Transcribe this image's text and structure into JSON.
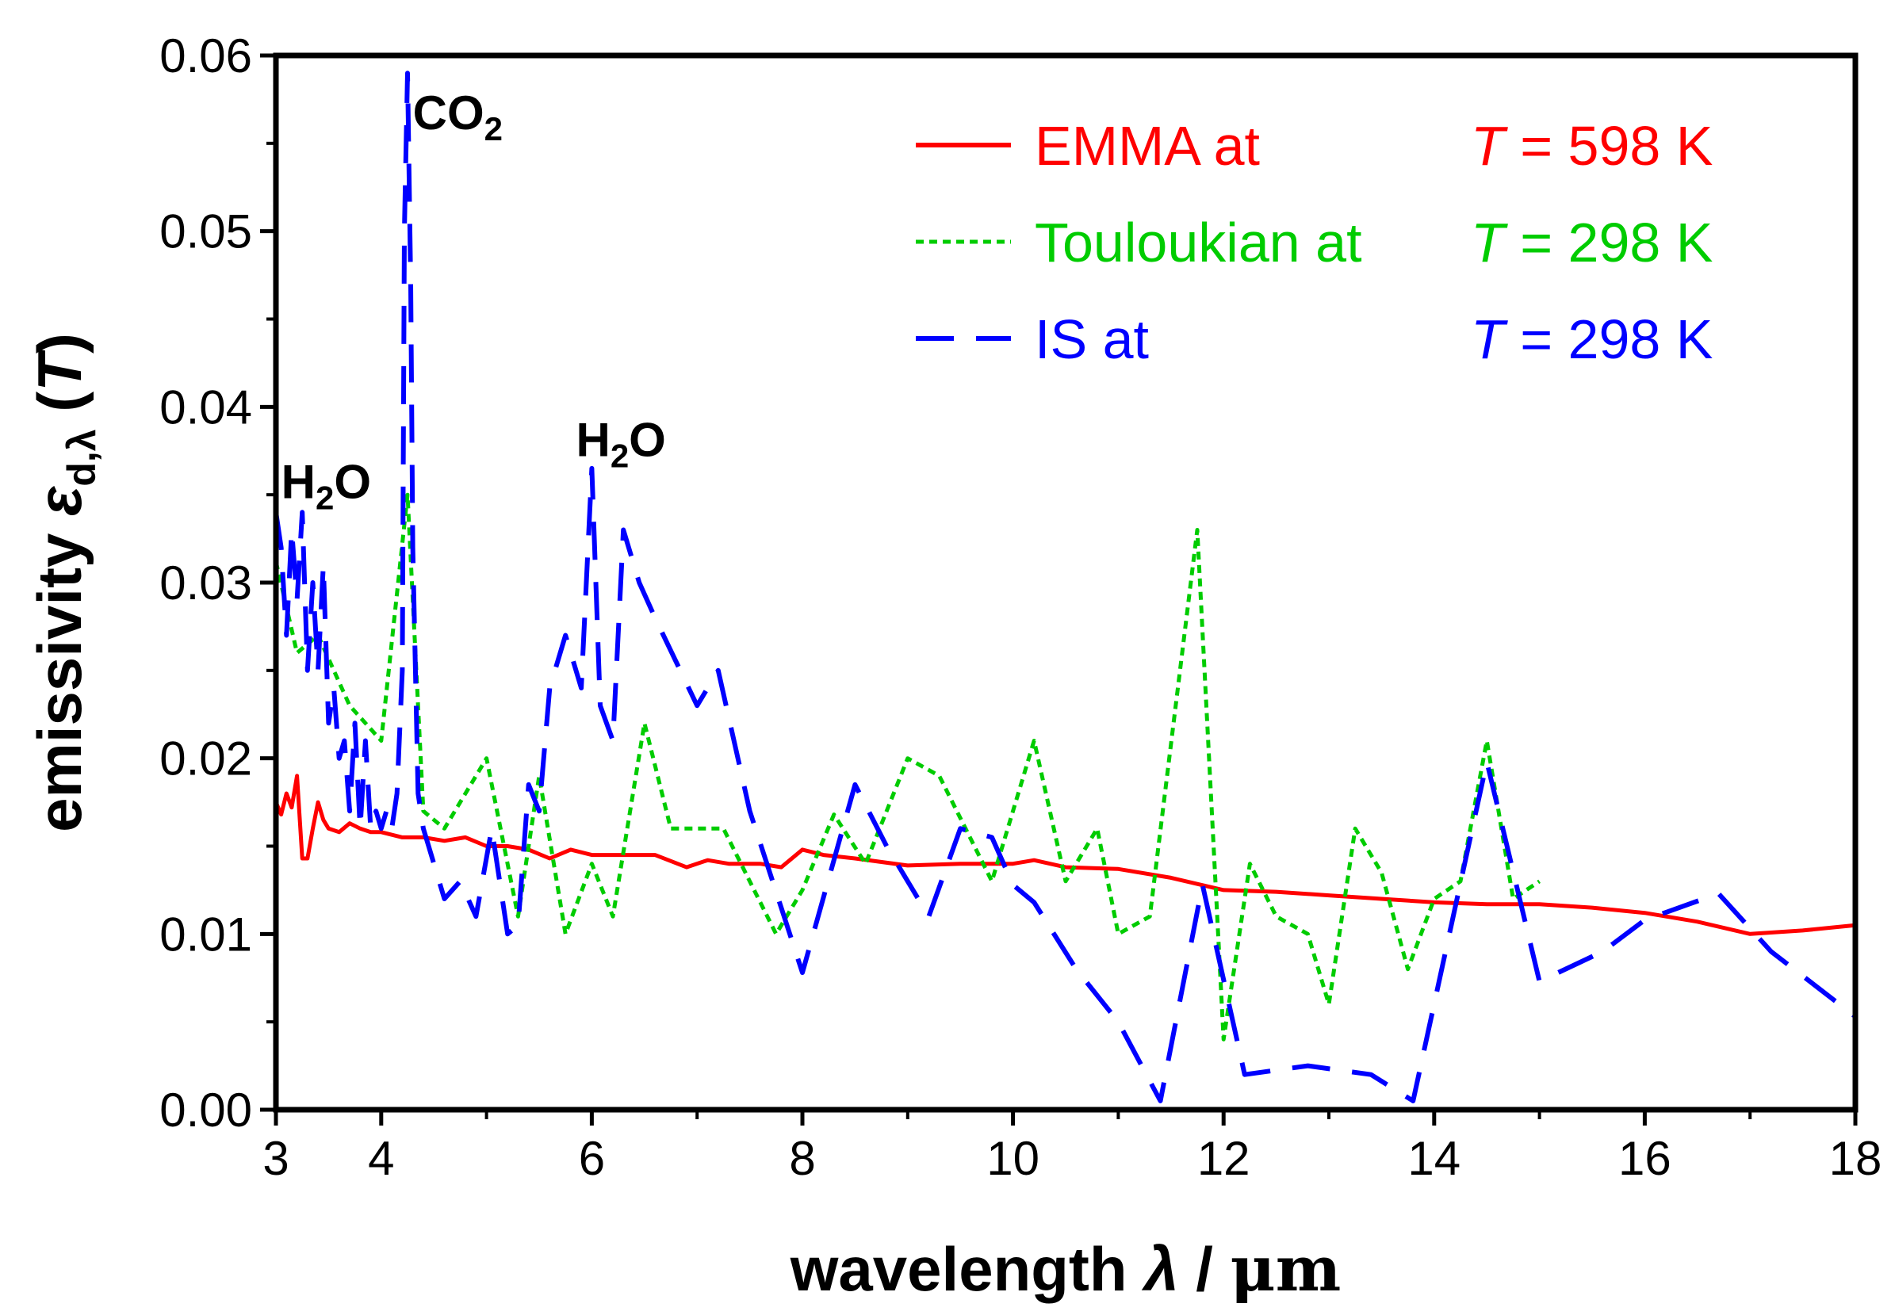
{
  "chart_data": {
    "type": "line",
    "xlabel": {
      "prefix": "wavelength ",
      "symbol": "λ",
      "sep": " / ",
      "unit": "μm"
    },
    "ylabel": {
      "prefix": "emissivity ",
      "symbol": "ε",
      "sub": "d,λ",
      "open": " (",
      "var": "T",
      "close": ")"
    },
    "xlim": [
      3,
      18
    ],
    "ylim": [
      0,
      0.06
    ],
    "xticks": [
      3,
      4,
      6,
      8,
      10,
      12,
      14,
      16,
      18
    ],
    "xtick_labels": [
      "3",
      "4",
      "6",
      "8",
      "10",
      "12",
      "14",
      "16",
      "18"
    ],
    "yticks": [
      0,
      0.01,
      0.02,
      0.03,
      0.04,
      0.05,
      0.06
    ],
    "ytick_labels": [
      "0.00",
      "0.01",
      "0.02",
      "0.03",
      "0.04",
      "0.05",
      "0.06"
    ],
    "annotations": [
      {
        "main": "H",
        "sub": "2",
        "tail": "O",
        "x": 3.05,
        "y": 0.0348
      },
      {
        "main": "CO",
        "sub": "2",
        "tail": "",
        "x": 4.3,
        "y": 0.0558
      },
      {
        "main": "H",
        "sub": "2",
        "tail": "O",
        "x": 5.85,
        "y": 0.0372
      }
    ],
    "series": [
      {
        "name": "EMMA at",
        "temp_var": "T",
        "temp_value": "= 598 K",
        "color": "#ff0000",
        "style": "solid",
        "x": [
          3.0,
          3.05,
          3.1,
          3.15,
          3.2,
          3.25,
          3.3,
          3.35,
          3.4,
          3.45,
          3.5,
          3.6,
          3.7,
          3.8,
          3.9,
          4.0,
          4.2,
          4.4,
          4.6,
          4.8,
          5.0,
          5.2,
          5.4,
          5.6,
          5.8,
          6.0,
          6.3,
          6.6,
          6.9,
          7.1,
          7.3,
          7.6,
          7.8,
          8.0,
          8.2,
          8.5,
          9.0,
          9.5,
          10.0,
          10.2,
          10.5,
          11.0,
          11.5,
          12.0,
          12.5,
          13.0,
          13.5,
          14.0,
          14.5,
          15.0,
          15.5,
          16.0,
          16.5,
          17.0,
          17.5,
          18.0
        ],
        "y": [
          0.0175,
          0.0168,
          0.018,
          0.0172,
          0.019,
          0.0143,
          0.0143,
          0.016,
          0.0175,
          0.0165,
          0.016,
          0.0158,
          0.0163,
          0.016,
          0.0158,
          0.0158,
          0.0155,
          0.0155,
          0.0153,
          0.0155,
          0.015,
          0.015,
          0.0148,
          0.0143,
          0.0148,
          0.0145,
          0.0145,
          0.0145,
          0.0138,
          0.0142,
          0.014,
          0.014,
          0.0138,
          0.0148,
          0.0145,
          0.0143,
          0.0139,
          0.014,
          0.014,
          0.0142,
          0.0138,
          0.0137,
          0.0132,
          0.0125,
          0.0124,
          0.0122,
          0.012,
          0.0118,
          0.0117,
          0.0117,
          0.0115,
          0.0112,
          0.0107,
          0.01,
          0.0102,
          0.0105
        ]
      },
      {
        "name": "Touloukian at",
        "temp_var": "T",
        "temp_value": "= 298 K",
        "color": "#00cc00",
        "style": "dotted",
        "x": [
          3.0,
          3.2,
          3.4,
          3.7,
          4.0,
          4.25,
          4.4,
          4.6,
          5.0,
          5.3,
          5.5,
          5.75,
          6.0,
          6.2,
          6.5,
          6.75,
          7.25,
          7.75,
          8.0,
          8.3,
          8.6,
          9.0,
          9.3,
          9.8,
          10.2,
          10.5,
          10.8,
          11.0,
          11.3,
          11.75,
          12.0,
          12.25,
          12.5,
          12.8,
          13.0,
          13.25,
          13.5,
          13.75,
          14.0,
          14.25,
          14.5,
          14.75,
          15.0
        ],
        "y": [
          0.0312,
          0.026,
          0.027,
          0.023,
          0.021,
          0.035,
          0.017,
          0.016,
          0.02,
          0.011,
          0.019,
          0.01,
          0.014,
          0.011,
          0.022,
          0.016,
          0.016,
          0.01,
          0.0125,
          0.0168,
          0.014,
          0.02,
          0.019,
          0.013,
          0.021,
          0.013,
          0.016,
          0.01,
          0.011,
          0.033,
          0.004,
          0.014,
          0.011,
          0.01,
          0.006,
          0.016,
          0.0135,
          0.008,
          0.012,
          0.013,
          0.021,
          0.012,
          0.013
        ]
      },
      {
        "name": "IS at",
        "temp_var": "T",
        "temp_value": "= 298 K",
        "color": "#0000ff",
        "style": "dashed",
        "x": [
          3.0,
          3.05,
          3.1,
          3.15,
          3.2,
          3.25,
          3.3,
          3.35,
          3.4,
          3.45,
          3.5,
          3.55,
          3.6,
          3.65,
          3.7,
          3.75,
          3.8,
          3.85,
          3.9,
          3.95,
          4.0,
          4.05,
          4.1,
          4.15,
          4.2,
          4.22,
          4.25,
          4.28,
          4.3,
          4.35,
          4.4,
          4.45,
          4.6,
          4.75,
          4.9,
          5.05,
          5.2,
          5.3,
          5.4,
          5.5,
          5.6,
          5.75,
          5.9,
          6.0,
          6.08,
          6.2,
          6.3,
          6.45,
          6.6,
          7.0,
          7.2,
          7.5,
          8.0,
          8.5,
          8.8,
          9.2,
          9.5,
          9.8,
          10.0,
          10.2,
          10.6,
          11.0,
          11.4,
          11.8,
          12.2,
          12.8,
          13.4,
          13.8,
          14.5,
          15.0,
          15.6,
          16.0,
          16.7,
          17.2,
          18.0
        ],
        "y": [
          0.034,
          0.032,
          0.027,
          0.033,
          0.029,
          0.034,
          0.025,
          0.03,
          0.025,
          0.031,
          0.022,
          0.024,
          0.02,
          0.021,
          0.017,
          0.022,
          0.016,
          0.021,
          0.016,
          0.017,
          0.016,
          0.017,
          0.016,
          0.018,
          0.025,
          0.05,
          0.059,
          0.047,
          0.032,
          0.018,
          0.016,
          0.015,
          0.012,
          0.013,
          0.011,
          0.016,
          0.01,
          0.0105,
          0.0185,
          0.017,
          0.024,
          0.027,
          0.024,
          0.0365,
          0.023,
          0.021,
          0.033,
          0.03,
          0.028,
          0.023,
          0.025,
          0.017,
          0.0078,
          0.0185,
          0.015,
          0.011,
          0.016,
          0.0155,
          0.0128,
          0.0118,
          0.008,
          0.005,
          0.0005,
          0.0128,
          0.002,
          0.0025,
          0.002,
          0.0005,
          0.0198,
          0.0073,
          0.009,
          0.0108,
          0.0123,
          0.009,
          0.0053
        ]
      }
    ]
  }
}
